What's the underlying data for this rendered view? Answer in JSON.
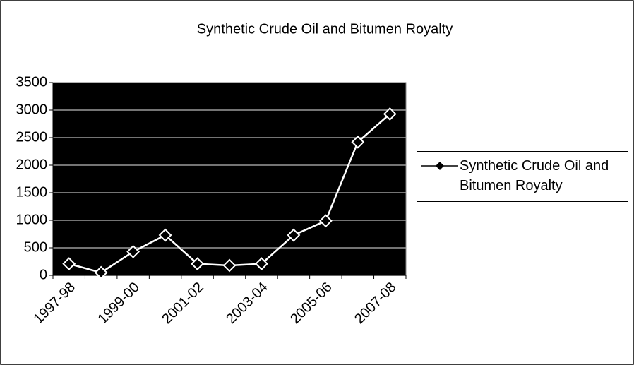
{
  "chart_data": {
    "type": "line",
    "title": "Synthetic Crude Oil and Bitumen Royalty",
    "categories": [
      "1997-98",
      null,
      "1999-00",
      null,
      "2001-02",
      null,
      "2003-04",
      null,
      "2005-06",
      null,
      "2007-08"
    ],
    "series": [
      {
        "name": "Synthetic Crude Oil and Bitumen Royalty",
        "color": "#ffffff",
        "values": [
          210,
          50,
          430,
          730,
          210,
          180,
          210,
          730,
          990,
          2420,
          2930
        ]
      }
    ],
    "ylim": [
      0,
      3500
    ],
    "yticks": [
      0,
      500,
      1000,
      1500,
      2000,
      2500,
      3000,
      3500
    ],
    "grid": true,
    "plot_background": "#000000",
    "legend": "right"
  }
}
